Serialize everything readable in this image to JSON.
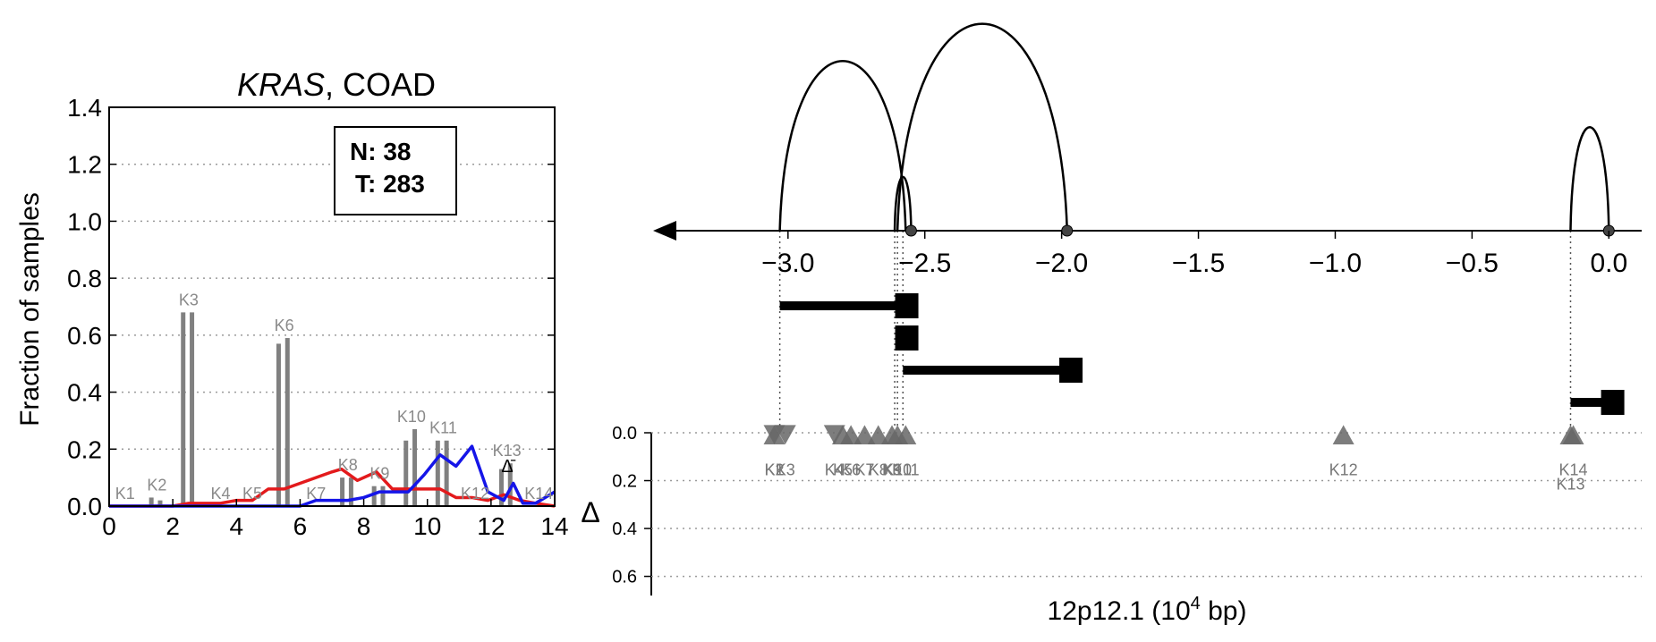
{
  "colors": {
    "bar": "#808080",
    "normal_line": "#e31a1c",
    "tumor_line": "#1515e8",
    "axis": "#000000",
    "grid": "#9a9a9a",
    "triangle": "#666666"
  },
  "chart_data": [
    {
      "type": "bar",
      "title_italic": "KRAS",
      "title_rest": ", COAD",
      "ylabel": "Fraction of samples",
      "xlabel": "",
      "xlim": [
        0,
        14
      ],
      "ylim": [
        0,
        1.4
      ],
      "xticks": [
        "0",
        "2",
        "4",
        "6",
        "8",
        "10",
        "12",
        "14"
      ],
      "yticks": [
        "0.0",
        "0.2",
        "0.4",
        "0.6",
        "0.8",
        "1.0",
        "1.2",
        "1.4"
      ],
      "grid": "horizontal dotted",
      "legend": {
        "position": "top-right",
        "lines": [
          "N: 38",
          "T: 283"
        ]
      },
      "series": [
        {
          "name": "N",
          "values": [
            0.0,
            0.03,
            0.68,
            0.0,
            0.0,
            0.57,
            0.0,
            0.1,
            0.07,
            0.23,
            0.23,
            0.0,
            0.13,
            0.0
          ]
        },
        {
          "name": "T",
          "values": [
            0.0,
            0.02,
            0.68,
            0.0,
            0.0,
            0.59,
            0.0,
            0.1,
            0.07,
            0.27,
            0.23,
            0.0,
            0.15,
            0.0
          ]
        }
      ],
      "categories": [
        "K1",
        "K2",
        "K3",
        "K4",
        "K5",
        "K6",
        "K7",
        "K8",
        "K9",
        "K10",
        "K11",
        "K12",
        "K13",
        "K14"
      ],
      "category_positions": [
        0.5,
        1.5,
        2.5,
        3.5,
        4.5,
        5.5,
        6.5,
        7.5,
        8.5,
        9.5,
        10.5,
        11.5,
        12.5,
        13.5
      ],
      "delta_label": "Δ̄",
      "lines": [
        {
          "name": "red",
          "x": [
            0,
            1,
            2,
            2.5,
            3,
            3.5,
            4,
            4.5,
            5,
            5.5,
            6,
            6.5,
            7,
            7.3,
            7.8,
            8.4,
            8.9,
            9.4,
            9.9,
            10.4,
            10.9,
            11.4,
            11.9,
            12.4,
            12.9,
            13.4,
            14
          ],
          "y": [
            0,
            0,
            0,
            0.01,
            0.01,
            0.01,
            0.02,
            0.02,
            0.06,
            0.06,
            0.08,
            0.1,
            0.12,
            0.13,
            0.09,
            0.12,
            0.06,
            0.06,
            0.06,
            0.06,
            0.03,
            0.03,
            0.02,
            0.04,
            0.02,
            0.01,
            0.0
          ]
        },
        {
          "name": "blue",
          "x": [
            0,
            6,
            6.5,
            7,
            7.5,
            8,
            8.5,
            9,
            9.4,
            9.9,
            10.4,
            10.9,
            11.4,
            11.9,
            12.4,
            12.7,
            13,
            13.4,
            14
          ],
          "y": [
            0,
            0,
            0.02,
            0.02,
            0.02,
            0.03,
            0.05,
            0.05,
            0.05,
            0.11,
            0.18,
            0.14,
            0.21,
            0.05,
            0.02,
            0.08,
            0.01,
            0.01,
            0.05
          ]
        }
      ]
    },
    {
      "type": "scatter",
      "xlabel_prefix": "12p12.1 (10",
      "xlabel_sup": "4",
      "xlabel_suffix": " bp)",
      "xlim": [
        -3.48,
        0.12
      ],
      "xticks": [
        "−3.0",
        "−2.5",
        "−2.0",
        "−1.5",
        "−1.0",
        "−0.5",
        "0.0"
      ],
      "xtick_values": [
        -3.0,
        -2.5,
        -2.0,
        -1.5,
        -1.0,
        -0.5,
        0.0
      ],
      "delta_axis_label": "Δ",
      "delta_yticks": [
        "0.0",
        "0.2",
        "0.4",
        "0.6"
      ],
      "delta_ylim": [
        0,
        0.68
      ],
      "arcs": [
        {
          "x1": -3.03,
          "x2": -2.57,
          "height": 0.82
        },
        {
          "x1": -2.6,
          "x2": -1.98,
          "height": 1.0
        },
        {
          "x1": -2.61,
          "x2": -2.55,
          "height": 0.26
        },
        {
          "x1": -0.14,
          "x2": 0.0,
          "height": 0.5
        }
      ],
      "dots": [
        -2.55,
        -1.98,
        0.0
      ],
      "transcripts": [
        {
          "start": -3.03,
          "end": -2.53
        },
        {
          "start": -2.6,
          "end": -2.53
        },
        {
          "start": -2.58,
          "end": -1.93
        },
        {
          "start": -0.14,
          "end": 0.05
        }
      ],
      "guides": [
        -3.03,
        -2.61,
        -2.6,
        -2.58,
        -0.14
      ],
      "triangles": [
        {
          "label": "K1",
          "x": -3.05,
          "dir": "up",
          "delta": 0.02
        },
        {
          "label": "K2",
          "x": -3.05,
          "dir": "down",
          "delta": 0.02
        },
        {
          "label": "K3",
          "x": -3.01,
          "dir": "down",
          "delta": 0.02
        },
        {
          "label": "K4",
          "x": -2.83,
          "dir": "down",
          "delta": 0.02
        },
        {
          "label": "K5",
          "x": -2.8,
          "dir": "up",
          "delta": 0.02
        },
        {
          "label": "K6",
          "x": -2.77,
          "dir": "up",
          "delta": 0.02
        },
        {
          "label": "K7",
          "x": -2.72,
          "dir": "up",
          "delta": 0.02
        },
        {
          "label": "K8",
          "x": -2.67,
          "dir": "up",
          "delta": 0.02
        },
        {
          "label": "K9",
          "x": -2.62,
          "dir": "up",
          "delta": 0.02
        },
        {
          "label": "K10",
          "x": -2.6,
          "dir": "up",
          "delta": 0.02
        },
        {
          "label": "K11",
          "x": -2.57,
          "dir": "up",
          "delta": 0.02
        },
        {
          "label": "K12",
          "x": -0.97,
          "dir": "up",
          "delta": 0.02
        },
        {
          "label": "K13",
          "x": -0.14,
          "dir": "up",
          "delta": 0.02
        },
        {
          "label": "K14",
          "x": -0.13,
          "dir": "up",
          "delta": 0.02
        }
      ]
    }
  ]
}
